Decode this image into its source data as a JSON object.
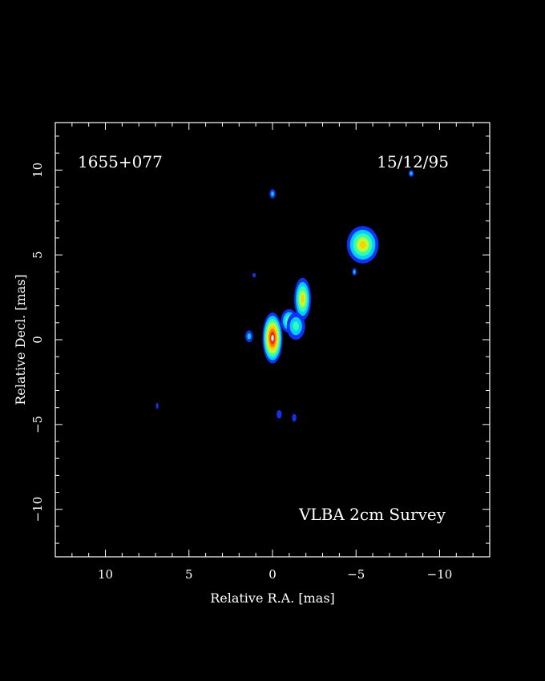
{
  "image": {
    "source_name": "1655+077",
    "date": "15/12/95",
    "survey": "VLBA 2cm Survey",
    "xlabel": "Relative R.A. [mas]",
    "ylabel": "Relative Decl. [mas]",
    "x_range": [
      13,
      -13
    ],
    "y_range": [
      -12.8,
      12.8
    ],
    "x_ticks": [
      10,
      5,
      0,
      -5,
      -10
    ],
    "y_ticks": [
      10,
      5,
      0,
      -5,
      -10
    ],
    "x_tick_labels": [
      "10",
      "5",
      "0",
      "−5",
      "−10"
    ],
    "y_tick_labels": [
      "10",
      "5",
      "0",
      "−5",
      "−10"
    ],
    "colormap": [
      "#1030ff",
      "#00d0ff",
      "#30ffb0",
      "#c0ff30",
      "#ffd000",
      "#ff8000",
      "#ff2020",
      "#ffffff"
    ],
    "components": [
      {
        "name": "core",
        "ra": 0.0,
        "dec": 0.1,
        "width": 1.2,
        "height": 3.0,
        "intensity": 8
      },
      {
        "name": "jet-knot-1",
        "ra": -1.0,
        "dec": 1.1,
        "width": 1.0,
        "height": 1.4,
        "intensity": 4
      },
      {
        "name": "jet-knot-2",
        "ra": -1.8,
        "dec": 2.4,
        "width": 1.0,
        "height": 2.5,
        "intensity": 5
      },
      {
        "name": "jet-knot-3",
        "ra": -5.4,
        "dec": 5.6,
        "width": 1.9,
        "height": 2.2,
        "intensity": 5
      },
      {
        "name": "jet-faint-bridge",
        "ra": -1.4,
        "dec": 0.8,
        "width": 1.1,
        "height": 1.6,
        "intensity": 3
      },
      {
        "name": "spot-east",
        "ra": 1.4,
        "dec": 0.2,
        "width": 0.45,
        "height": 0.7,
        "intensity": 2
      },
      {
        "name": "spot-north",
        "ra": 0.0,
        "dec": 8.6,
        "width": 0.35,
        "height": 0.55,
        "intensity": 2
      },
      {
        "name": "spot-nw",
        "ra": -8.3,
        "dec": 9.8,
        "width": 0.3,
        "height": 0.4,
        "intensity": 2
      },
      {
        "name": "spot-small",
        "ra": 1.1,
        "dec": 3.8,
        "width": 0.2,
        "height": 0.25,
        "intensity": 1
      },
      {
        "name": "spot-sw",
        "ra": 6.9,
        "dec": -3.9,
        "width": 0.15,
        "height": 0.35,
        "intensity": 1
      },
      {
        "name": "spot-south-1",
        "ra": -0.4,
        "dec": -4.4,
        "width": 0.3,
        "height": 0.5,
        "intensity": 1
      },
      {
        "name": "spot-south-2",
        "ra": -1.3,
        "dec": -4.6,
        "width": 0.25,
        "height": 0.45,
        "intensity": 1
      },
      {
        "name": "spot-jet-tail",
        "ra": -4.9,
        "dec": 4.0,
        "width": 0.25,
        "height": 0.45,
        "intensity": 2
      }
    ]
  }
}
